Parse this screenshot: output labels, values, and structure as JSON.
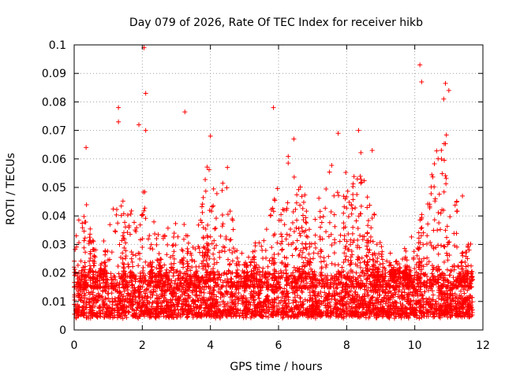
{
  "chart_data": {
    "type": "scatter",
    "title": "Day 079 of 2026, Rate Of TEC Index for receiver hikb",
    "xlabel": "GPS time / hours",
    "ylabel": "ROTI / TECUs",
    "xlim": [
      0,
      12
    ],
    "ylim": [
      0,
      0.1
    ],
    "xticks": [
      "0",
      "2",
      "4",
      "6",
      "8",
      "10",
      "12"
    ],
    "xtick_values": [
      0,
      2,
      4,
      6,
      8,
      10,
      12
    ],
    "yticks": [
      "0",
      "0.01",
      "0.02",
      "0.03",
      "0.04",
      "0.05",
      "0.06",
      "0.07",
      "0.08",
      "0.09",
      "0.1"
    ],
    "ytick_values": [
      0,
      0.01,
      0.02,
      0.03,
      0.04,
      0.05,
      0.06,
      0.07,
      0.08,
      0.09,
      0.1
    ],
    "grid": true,
    "marker": "+",
    "series_color": "#ff0000",
    "data_x_range": [
      0,
      11.7
    ],
    "baseline_band": [
      0.005,
      0.02
    ],
    "notable_points": [
      {
        "x": 0.35,
        "y": 0.064
      },
      {
        "x": 1.3,
        "y": 0.078
      },
      {
        "x": 1.3,
        "y": 0.073
      },
      {
        "x": 1.9,
        "y": 0.072
      },
      {
        "x": 2.05,
        "y": 0.099
      },
      {
        "x": 2.1,
        "y": 0.083
      },
      {
        "x": 2.1,
        "y": 0.07
      },
      {
        "x": 3.25,
        "y": 0.0765
      },
      {
        "x": 4.0,
        "y": 0.068
      },
      {
        "x": 4.5,
        "y": 0.057
      },
      {
        "x": 5.85,
        "y": 0.078
      },
      {
        "x": 6.45,
        "y": 0.067
      },
      {
        "x": 7.75,
        "y": 0.069
      },
      {
        "x": 8.35,
        "y": 0.07
      },
      {
        "x": 8.75,
        "y": 0.063
      },
      {
        "x": 10.15,
        "y": 0.093
      },
      {
        "x": 10.2,
        "y": 0.087
      },
      {
        "x": 10.85,
        "y": 0.081
      },
      {
        "x": 10.9,
        "y": 0.0865
      },
      {
        "x": 11.0,
        "y": 0.084
      },
      {
        "x": 11.4,
        "y": 0.047
      }
    ],
    "activity_envelope": [
      {
        "x": 0.0,
        "peak": 0.03
      },
      {
        "x": 0.3,
        "peak": 0.05
      },
      {
        "x": 0.7,
        "peak": 0.025
      },
      {
        "x": 1.3,
        "peak": 0.05
      },
      {
        "x": 1.6,
        "peak": 0.04
      },
      {
        "x": 2.0,
        "peak": 0.055
      },
      {
        "x": 2.5,
        "peak": 0.032
      },
      {
        "x": 3.0,
        "peak": 0.04
      },
      {
        "x": 3.5,
        "peak": 0.035
      },
      {
        "x": 3.9,
        "peak": 0.058
      },
      {
        "x": 4.5,
        "peak": 0.05
      },
      {
        "x": 5.0,
        "peak": 0.024
      },
      {
        "x": 5.5,
        "peak": 0.035
      },
      {
        "x": 5.9,
        "peak": 0.05
      },
      {
        "x": 6.4,
        "peak": 0.065
      },
      {
        "x": 7.0,
        "peak": 0.045
      },
      {
        "x": 7.5,
        "peak": 0.06
      },
      {
        "x": 8.0,
        "peak": 0.055
      },
      {
        "x": 8.4,
        "peak": 0.065
      },
      {
        "x": 9.0,
        "peak": 0.03
      },
      {
        "x": 9.5,
        "peak": 0.025
      },
      {
        "x": 10.0,
        "peak": 0.035
      },
      {
        "x": 10.4,
        "peak": 0.055
      },
      {
        "x": 10.9,
        "peak": 0.075
      },
      {
        "x": 11.3,
        "peak": 0.04
      },
      {
        "x": 11.7,
        "peak": 0.03
      }
    ]
  }
}
